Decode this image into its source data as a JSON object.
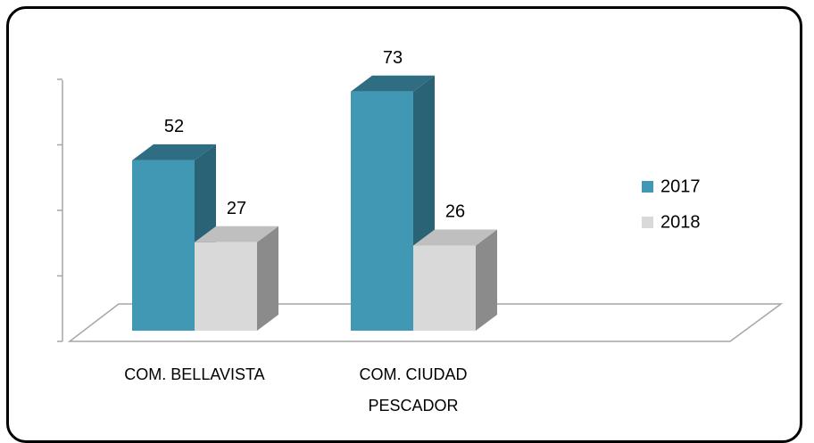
{
  "chart_data": {
    "type": "bar3d",
    "categories": [
      "COM. BELLAVISTA",
      "COM. CIUDAD PESCADOR"
    ],
    "series": [
      {
        "name": "2017",
        "color": "#4198b4",
        "values": [
          52,
          73
        ]
      },
      {
        "name": "2018",
        "color": "#d9d9d9",
        "values": [
          27,
          26
        ]
      }
    ],
    "ylim": [
      0,
      80
    ],
    "yticks": [
      0,
      20,
      40,
      60,
      80
    ],
    "legend": "right"
  }
}
